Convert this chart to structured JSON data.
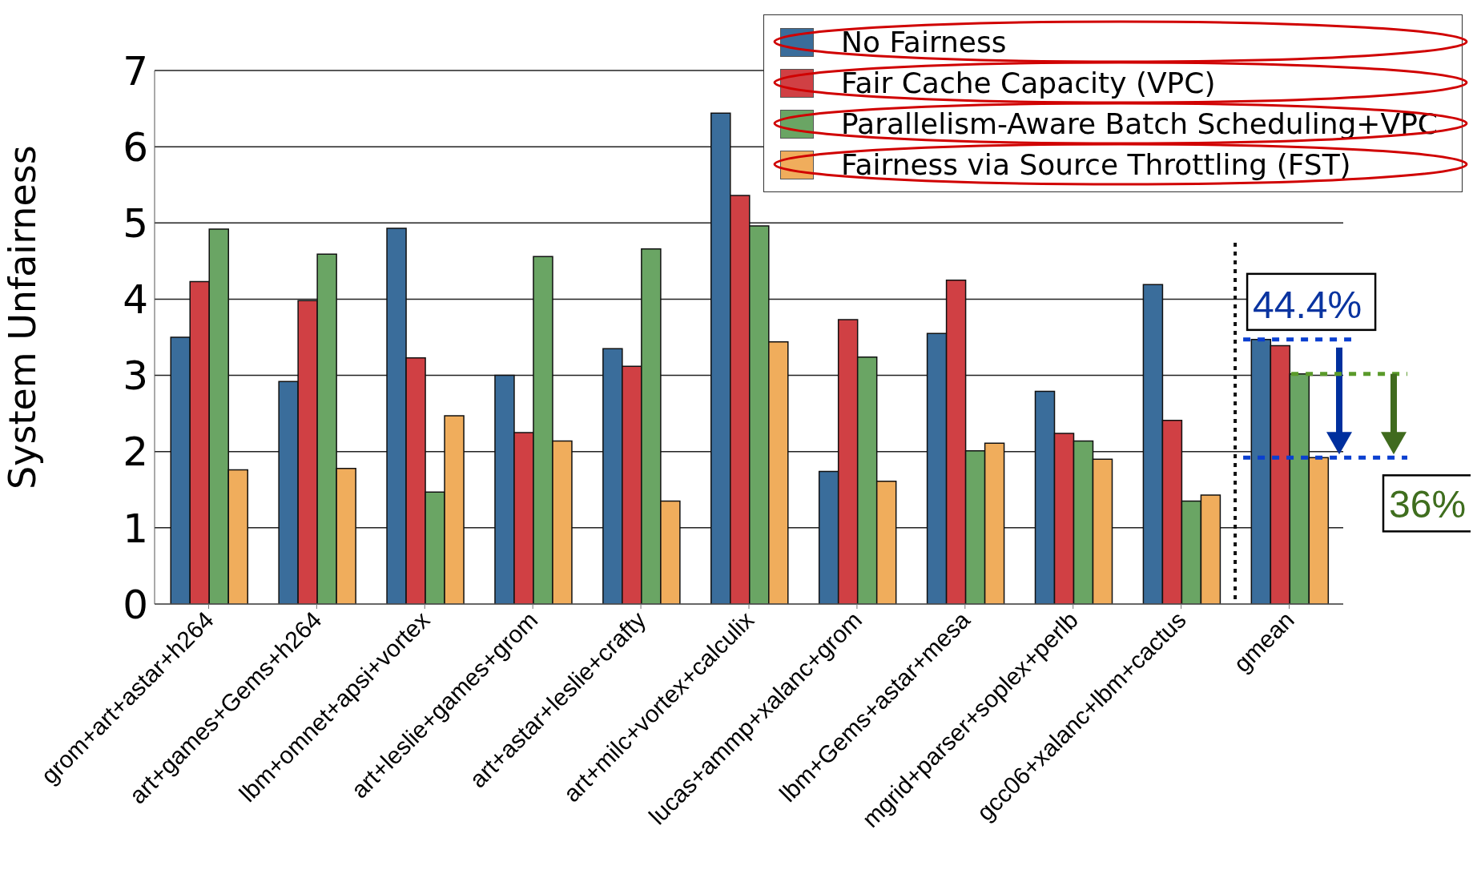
{
  "chart_data": {
    "type": "bar",
    "ylabel": "System Unfairness",
    "categories": [
      "grom+art+astar+h264",
      "art+games+Gems+h264",
      "lbm+omnet+apsi+vortex",
      "art+leslie+games+grom",
      "art+astar+leslie+crafty",
      "art+milc+vortex+calculix",
      "lucas+ammp+xalanc+grom",
      "lbm+Gems+astar+mesa",
      "mgrid+parser+soplex+perlb",
      "gcc06+xalanc+lbm+cactus",
      "gmean"
    ],
    "series": [
      {
        "name": "No Fairness",
        "color": "#3a6d9b",
        "values": [
          3.5,
          2.92,
          4.93,
          3.0,
          3.35,
          6.44,
          1.74,
          3.55,
          2.79,
          4.19,
          3.47
        ]
      },
      {
        "name": "Fair Cache Capacity (VPC)",
        "color": "#d04044",
        "values": [
          4.23,
          3.98,
          3.23,
          2.25,
          3.12,
          5.36,
          3.73,
          4.25,
          2.24,
          2.41,
          3.39
        ]
      },
      {
        "name": "Parallelism-Aware Batch Scheduling+VPC",
        "color": "#6aa564",
        "values": [
          4.92,
          4.59,
          1.47,
          4.56,
          4.66,
          4.96,
          3.24,
          2.01,
          2.14,
          1.35,
          3.02
        ]
      },
      {
        "name": "Fairness via Source Throttling (FST)",
        "color": "#f0ad5c",
        "values": [
          1.76,
          1.78,
          2.47,
          2.14,
          1.35,
          3.44,
          1.61,
          2.11,
          1.9,
          1.43,
          1.92
        ]
      }
    ],
    "ylim": [
      0,
      7
    ],
    "yticks": [
      0,
      1,
      2,
      3,
      4,
      5,
      6,
      7
    ],
    "grid": "y",
    "legend": "top right",
    "annotations": [
      "44.4%",
      "36%"
    ]
  }
}
